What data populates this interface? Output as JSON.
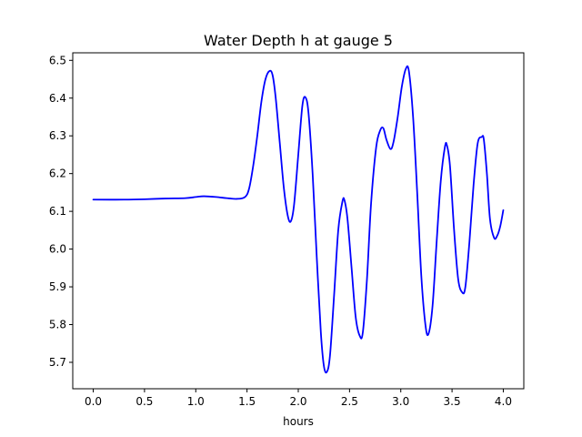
{
  "chart_data": {
    "type": "line",
    "title": "Water Depth h at gauge 5",
    "xlabel": "hours",
    "ylabel": "",
    "xlim": [
      -0.2,
      4.2
    ],
    "ylim": [
      5.63,
      6.52
    ],
    "xticks": [
      0.0,
      0.5,
      1.0,
      1.5,
      2.0,
      2.5,
      3.0,
      3.5,
      4.0
    ],
    "xtick_labels": [
      "0.0",
      "0.5",
      "1.0",
      "1.5",
      "2.0",
      "2.5",
      "3.0",
      "3.5",
      "4.0"
    ],
    "yticks": [
      5.7,
      5.8,
      5.9,
      6.0,
      6.1,
      6.2,
      6.3,
      6.4,
      6.5
    ],
    "ytick_labels": [
      "5.7",
      "5.8",
      "5.9",
      "6.0",
      "6.1",
      "6.2",
      "6.3",
      "6.4",
      "6.5"
    ],
    "grid": false,
    "series": [
      {
        "color": "#0000ff",
        "points": [
          [
            0.0,
            6.131
          ],
          [
            0.3,
            6.131
          ],
          [
            0.5,
            6.132
          ],
          [
            0.7,
            6.134
          ],
          [
            0.9,
            6.135
          ],
          [
            1.0,
            6.138
          ],
          [
            1.08,
            6.14
          ],
          [
            1.2,
            6.138
          ],
          [
            1.3,
            6.135
          ],
          [
            1.4,
            6.133
          ],
          [
            1.48,
            6.138
          ],
          [
            1.52,
            6.16
          ],
          [
            1.56,
            6.22
          ],
          [
            1.6,
            6.3
          ],
          [
            1.64,
            6.39
          ],
          [
            1.68,
            6.45
          ],
          [
            1.72,
            6.472
          ],
          [
            1.75,
            6.46
          ],
          [
            1.78,
            6.4
          ],
          [
            1.82,
            6.28
          ],
          [
            1.86,
            6.16
          ],
          [
            1.9,
            6.085
          ],
          [
            1.93,
            6.075
          ],
          [
            1.96,
            6.12
          ],
          [
            2.0,
            6.25
          ],
          [
            2.04,
            6.38
          ],
          [
            2.07,
            6.402
          ],
          [
            2.1,
            6.36
          ],
          [
            2.14,
            6.2
          ],
          [
            2.18,
            5.98
          ],
          [
            2.22,
            5.78
          ],
          [
            2.25,
            5.69
          ],
          [
            2.28,
            5.675
          ],
          [
            2.31,
            5.72
          ],
          [
            2.35,
            5.88
          ],
          [
            2.39,
            6.05
          ],
          [
            2.43,
            6.125
          ],
          [
            2.45,
            6.13
          ],
          [
            2.48,
            6.08
          ],
          [
            2.52,
            5.95
          ],
          [
            2.56,
            5.82
          ],
          [
            2.6,
            5.77
          ],
          [
            2.63,
            5.78
          ],
          [
            2.67,
            5.92
          ],
          [
            2.71,
            6.12
          ],
          [
            2.76,
            6.27
          ],
          [
            2.8,
            6.315
          ],
          [
            2.83,
            6.32
          ],
          [
            2.86,
            6.29
          ],
          [
            2.9,
            6.265
          ],
          [
            2.93,
            6.285
          ],
          [
            2.97,
            6.35
          ],
          [
            3.01,
            6.43
          ],
          [
            3.05,
            6.478
          ],
          [
            3.08,
            6.47
          ],
          [
            3.12,
            6.35
          ],
          [
            3.16,
            6.15
          ],
          [
            3.2,
            5.93
          ],
          [
            3.24,
            5.8
          ],
          [
            3.27,
            5.775
          ],
          [
            3.31,
            5.85
          ],
          [
            3.35,
            6.02
          ],
          [
            3.39,
            6.18
          ],
          [
            3.43,
            6.27
          ],
          [
            3.45,
            6.275
          ],
          [
            3.48,
            6.22
          ],
          [
            3.52,
            6.05
          ],
          [
            3.56,
            5.92
          ],
          [
            3.6,
            5.885
          ],
          [
            3.63,
            5.9
          ],
          [
            3.67,
            6.02
          ],
          [
            3.71,
            6.17
          ],
          [
            3.75,
            6.28
          ],
          [
            3.79,
            6.297
          ],
          [
            3.81,
            6.29
          ],
          [
            3.84,
            6.2
          ],
          [
            3.87,
            6.08
          ],
          [
            3.91,
            6.03
          ],
          [
            3.94,
            6.035
          ],
          [
            3.97,
            6.06
          ],
          [
            4.0,
            6.103
          ]
        ]
      }
    ]
  }
}
